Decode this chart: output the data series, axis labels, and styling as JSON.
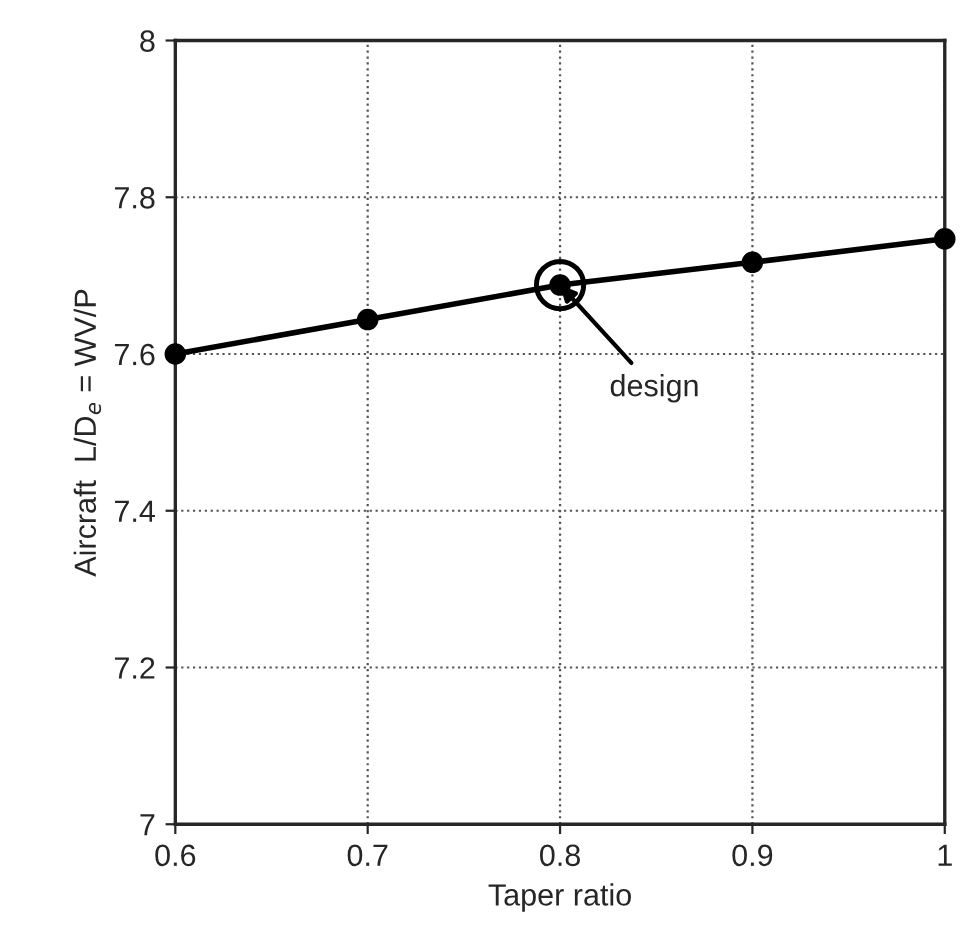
{
  "chart_data": {
    "type": "line",
    "xlabel": "Taper ratio",
    "ylabel": "Aircraft  L/D$_{e}$ = WV/P",
    "x": [
      0.6,
      0.7,
      0.8,
      0.9,
      1
    ],
    "series": [
      {
        "color": "#000000",
        "values": [
          7.6,
          7.644,
          7.688,
          7.717,
          7.747
        ]
      }
    ],
    "xlim": [
      0.6,
      1
    ],
    "xticks": [
      0.6,
      0.7,
      0.8,
      0.9,
      1
    ],
    "ylim": [
      7,
      8
    ],
    "yticks": [
      7,
      7.2,
      7.4,
      7.6,
      7.8,
      8
    ],
    "grid": true,
    "marker": "circle",
    "line_style": "solid",
    "legend": false,
    "annotations": [
      {
        "text": "design",
        "x": 0.8,
        "y": 7.688
      }
    ]
  }
}
